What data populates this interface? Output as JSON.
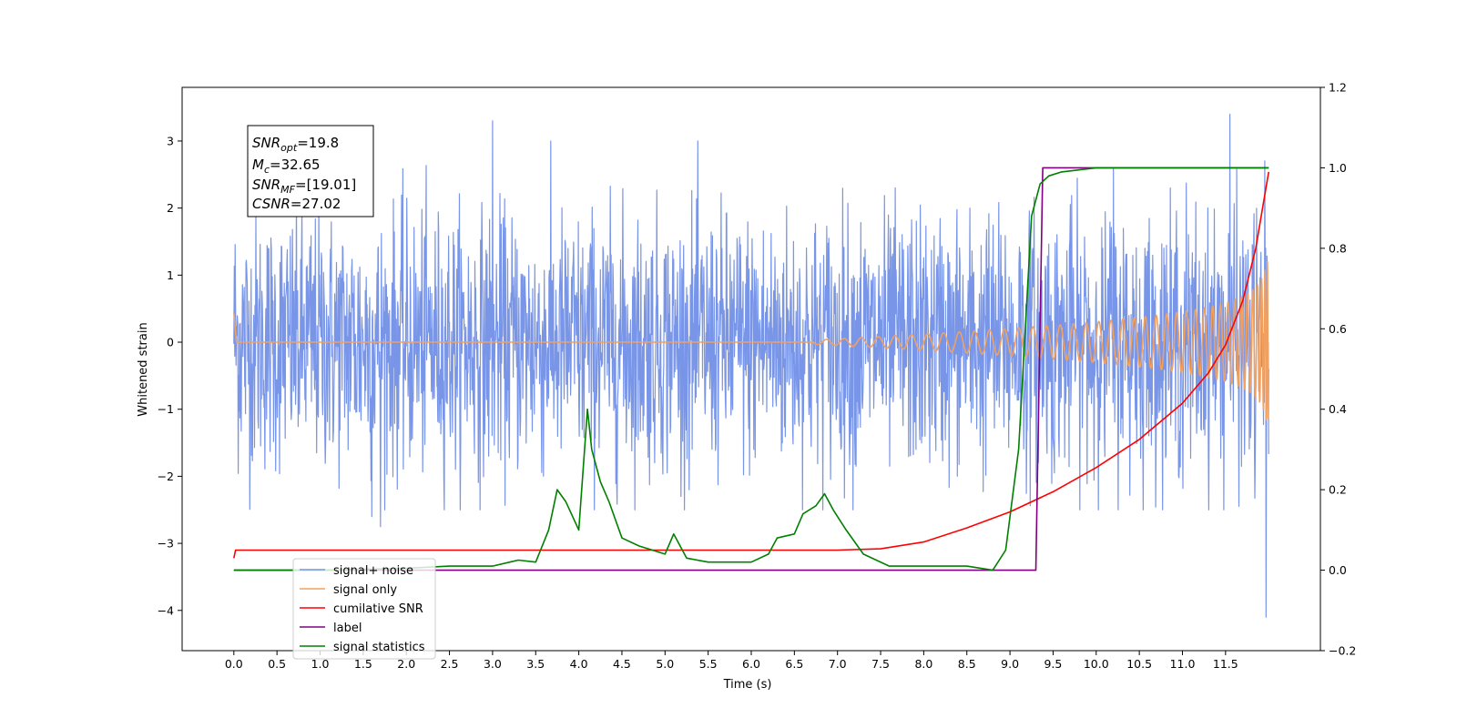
{
  "chart_data": {
    "type": "line",
    "title": "",
    "xlabel": "Time (s)",
    "ylabel": "Whitened strain",
    "y2label": "",
    "xlim": [
      -0.6,
      12.6
    ],
    "ylim": [
      -4.6,
      3.8
    ],
    "y2lim": [
      -0.2,
      1.2
    ],
    "xticks": [
      0.0,
      0.5,
      1.0,
      1.5,
      2.0,
      2.5,
      3.0,
      3.5,
      4.0,
      4.5,
      5.0,
      5.5,
      6.0,
      6.5,
      7.0,
      7.5,
      8.0,
      8.5,
      9.0,
      9.5,
      10.0,
      10.5,
      11.0,
      11.5
    ],
    "xtick_labels": [
      "0.0",
      "0.5",
      "1.0",
      "1.5",
      "2.0",
      "2.5",
      "3.0",
      "3.5",
      "4.0",
      "4.5",
      "5.0",
      "5.5",
      "6.0",
      "6.5",
      "7.0",
      "7.5",
      "8.0",
      "8.5",
      "9.0",
      "9.5",
      "10.0",
      "10.5",
      "11.0",
      "11.5"
    ],
    "yticks": [
      -4,
      -3,
      -2,
      -1,
      0,
      1,
      2,
      3
    ],
    "ytick_labels": [
      "−4",
      "−3",
      "−2",
      "−1",
      "0",
      "1",
      "2",
      "3"
    ],
    "y2ticks": [
      -0.2,
      0.0,
      0.2,
      0.4,
      0.6,
      0.8,
      1.0,
      1.2
    ],
    "y2tick_labels": [
      "−0.2",
      "0.0",
      "0.2",
      "0.4",
      "0.6",
      "0.8",
      "1.0",
      "1.2"
    ],
    "grid": false,
    "legend_position": "lower-left",
    "annotation": {
      "lines": [
        {
          "main": "SNR",
          "sub": "opt",
          "rest": "=19.8"
        },
        {
          "main": "M",
          "sub": "c",
          "rest": "=32.65"
        },
        {
          "main": "SNR",
          "sub": "MF",
          "rest": "=[19.01]"
        },
        {
          "main": "CSNR",
          "sub": "",
          "rest": "=27.02"
        }
      ]
    },
    "series": [
      {
        "name": "signal+ noise",
        "color": "#7895e8",
        "axis": "left",
        "style": "noise",
        "duration": 12.0,
        "sigma": 0.95,
        "peak_values": [
          3.3,
          3.4,
          -2.6,
          -2.75,
          2.6,
          -4.1
        ]
      },
      {
        "name": "signal only",
        "color": "#f0a060",
        "axis": "left",
        "style": "chirp",
        "t_start": 6.7,
        "t_merge": 12.0,
        "max_amplitude": 1.4
      },
      {
        "name": "cumilative SNR",
        "color": "#ff0000",
        "axis": "right",
        "x": [
          0.0,
          0.02,
          2.0,
          4.0,
          6.0,
          7.0,
          7.5,
          8.0,
          8.5,
          9.0,
          9.5,
          10.0,
          10.5,
          11.0,
          11.3,
          11.5,
          11.7,
          11.85,
          12.0
        ],
        "values": [
          0.03,
          0.05,
          0.05,
          0.05,
          0.05,
          0.05,
          0.053,
          0.07,
          0.105,
          0.145,
          0.195,
          0.255,
          0.325,
          0.415,
          0.49,
          0.56,
          0.67,
          0.8,
          0.99
        ]
      },
      {
        "name": "label",
        "color": "#800080",
        "axis": "right",
        "x": [
          0.0,
          9.3,
          9.38,
          12.0
        ],
        "values": [
          0.0,
          0.0,
          1.0,
          1.0
        ]
      },
      {
        "name": "signal statistics",
        "color": "#008000",
        "axis": "right",
        "x": [
          0.0,
          1.0,
          2.0,
          2.5,
          3.0,
          3.2,
          3.3,
          3.5,
          3.65,
          3.75,
          3.85,
          4.0,
          4.1,
          4.15,
          4.25,
          4.35,
          4.5,
          4.7,
          5.0,
          5.1,
          5.25,
          5.5,
          6.0,
          6.2,
          6.3,
          6.5,
          6.6,
          6.75,
          6.85,
          6.95,
          7.1,
          7.3,
          7.6,
          8.0,
          8.5,
          8.8,
          8.95,
          9.1,
          9.25,
          9.35,
          9.45,
          9.6,
          10.0,
          12.0
        ],
        "values": [
          0.0,
          0.0,
          0.005,
          0.01,
          0.01,
          0.02,
          0.025,
          0.02,
          0.1,
          0.2,
          0.17,
          0.1,
          0.4,
          0.3,
          0.22,
          0.17,
          0.08,
          0.06,
          0.04,
          0.09,
          0.03,
          0.02,
          0.02,
          0.04,
          0.08,
          0.09,
          0.14,
          0.16,
          0.19,
          0.15,
          0.1,
          0.04,
          0.01,
          0.01,
          0.01,
          0.0,
          0.05,
          0.3,
          0.88,
          0.96,
          0.98,
          0.99,
          1.0,
          1.0
        ]
      }
    ]
  }
}
